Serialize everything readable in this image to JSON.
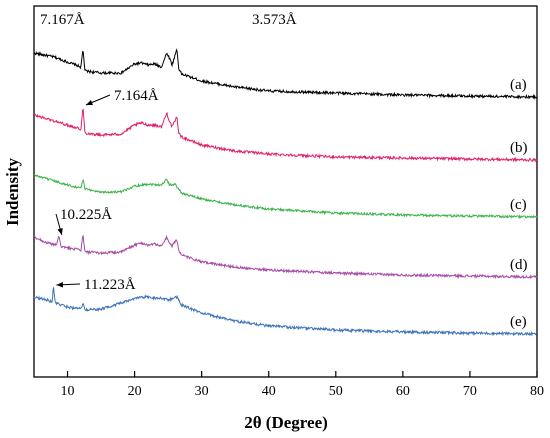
{
  "chart_data": {
    "type": "line",
    "title": "",
    "xlabel": "2θ (Degree)",
    "ylabel": "Indensity",
    "xlim": [
      5,
      80
    ],
    "xticks": [
      "10",
      "20",
      "30",
      "40",
      "50",
      "60",
      "70",
      "80"
    ],
    "yticks": false,
    "grid": false,
    "legend": "none",
    "series": [
      {
        "name": "(a)",
        "color": "#000000",
        "x": [
          5,
          8,
          10,
          12.0,
          12.3,
          12.6,
          15,
          18,
          20,
          21,
          22,
          23,
          24,
          24.8,
          25.2,
          25.6,
          26.3,
          26.6,
          27,
          30,
          35,
          40,
          50,
          60,
          70,
          80
        ],
        "y": [
          0.92,
          0.88,
          0.83,
          0.78,
          0.96,
          0.74,
          0.72,
          0.72,
          0.81,
          0.82,
          0.8,
          0.81,
          0.78,
          0.92,
          0.87,
          0.8,
          0.96,
          0.76,
          0.71,
          0.64,
          0.58,
          0.54,
          0.52,
          0.5,
          0.49,
          0.48
        ],
        "noise": 0.013
      },
      {
        "name": "(b)",
        "color": "#e0206a",
        "x": [
          5,
          8,
          10,
          12.0,
          12.3,
          12.6,
          15,
          18,
          20,
          21,
          22,
          23,
          24,
          24.8,
          25.2,
          25.6,
          26.3,
          26.6,
          27,
          30,
          35,
          40,
          50,
          60,
          70,
          80
        ],
        "y": [
          0.92,
          0.86,
          0.82,
          0.78,
          1.0,
          0.74,
          0.72,
          0.73,
          0.82,
          0.84,
          0.82,
          0.82,
          0.8,
          0.94,
          0.86,
          0.8,
          0.9,
          0.74,
          0.7,
          0.62,
          0.56,
          0.53,
          0.5,
          0.49,
          0.48,
          0.47
        ],
        "noise": 0.013
      },
      {
        "name": "(c)",
        "color": "#3cb44b",
        "x": [
          5,
          8,
          10,
          12.0,
          12.3,
          12.6,
          15,
          18,
          20,
          22,
          24,
          24.8,
          25.2,
          26,
          27,
          30,
          35,
          40,
          50,
          60,
          70,
          80
        ],
        "y": [
          0.9,
          0.84,
          0.8,
          0.77,
          0.86,
          0.76,
          0.73,
          0.73,
          0.79,
          0.81,
          0.8,
          0.86,
          0.8,
          0.81,
          0.72,
          0.66,
          0.6,
          0.56,
          0.52,
          0.5,
          0.49,
          0.48
        ],
        "noise": 0.011
      },
      {
        "name": "(d)",
        "color": "#a64ca6",
        "x": [
          5,
          7,
          8.3,
          8.7,
          9.1,
          10,
          12.0,
          12.3,
          12.6,
          15,
          18,
          20,
          21,
          22,
          23,
          24,
          24.8,
          25.2,
          25.6,
          26.3,
          26.6,
          27,
          30,
          35,
          40,
          50,
          60,
          70,
          80
        ],
        "y": [
          0.88,
          0.82,
          0.8,
          0.88,
          0.78,
          0.77,
          0.75,
          0.9,
          0.73,
          0.72,
          0.73,
          0.8,
          0.82,
          0.8,
          0.81,
          0.79,
          0.88,
          0.82,
          0.79,
          0.86,
          0.74,
          0.7,
          0.63,
          0.58,
          0.55,
          0.52,
          0.5,
          0.49,
          0.48
        ],
        "noise": 0.012
      },
      {
        "name": "(e)",
        "color": "#3d73b8",
        "x": [
          5,
          7,
          7.7,
          7.9,
          8.2,
          9,
          10,
          12.0,
          12.3,
          12.6,
          15,
          18,
          20,
          21,
          22,
          23,
          24,
          25,
          26.3,
          27,
          30,
          35,
          40,
          50,
          60,
          70,
          80
        ],
        "y": [
          0.86,
          0.83,
          0.81,
          0.96,
          0.8,
          0.78,
          0.76,
          0.74,
          0.8,
          0.73,
          0.74,
          0.8,
          0.84,
          0.86,
          0.86,
          0.85,
          0.85,
          0.83,
          0.86,
          0.78,
          0.7,
          0.62,
          0.57,
          0.53,
          0.51,
          0.5,
          0.49
        ],
        "noise": 0.013
      }
    ],
    "annotations": [
      {
        "text": "7.167Å",
        "series": 0,
        "x": 12.3
      },
      {
        "text": "3.573Å",
        "series": 0,
        "x": 26.3
      },
      {
        "text": "7.164Å",
        "series": 1,
        "x": 12.3
      },
      {
        "text": "10.225Å",
        "series": 3,
        "x": 8.7
      },
      {
        "text": "11.223Å",
        "series": 4,
        "x": 7.9
      }
    ]
  }
}
